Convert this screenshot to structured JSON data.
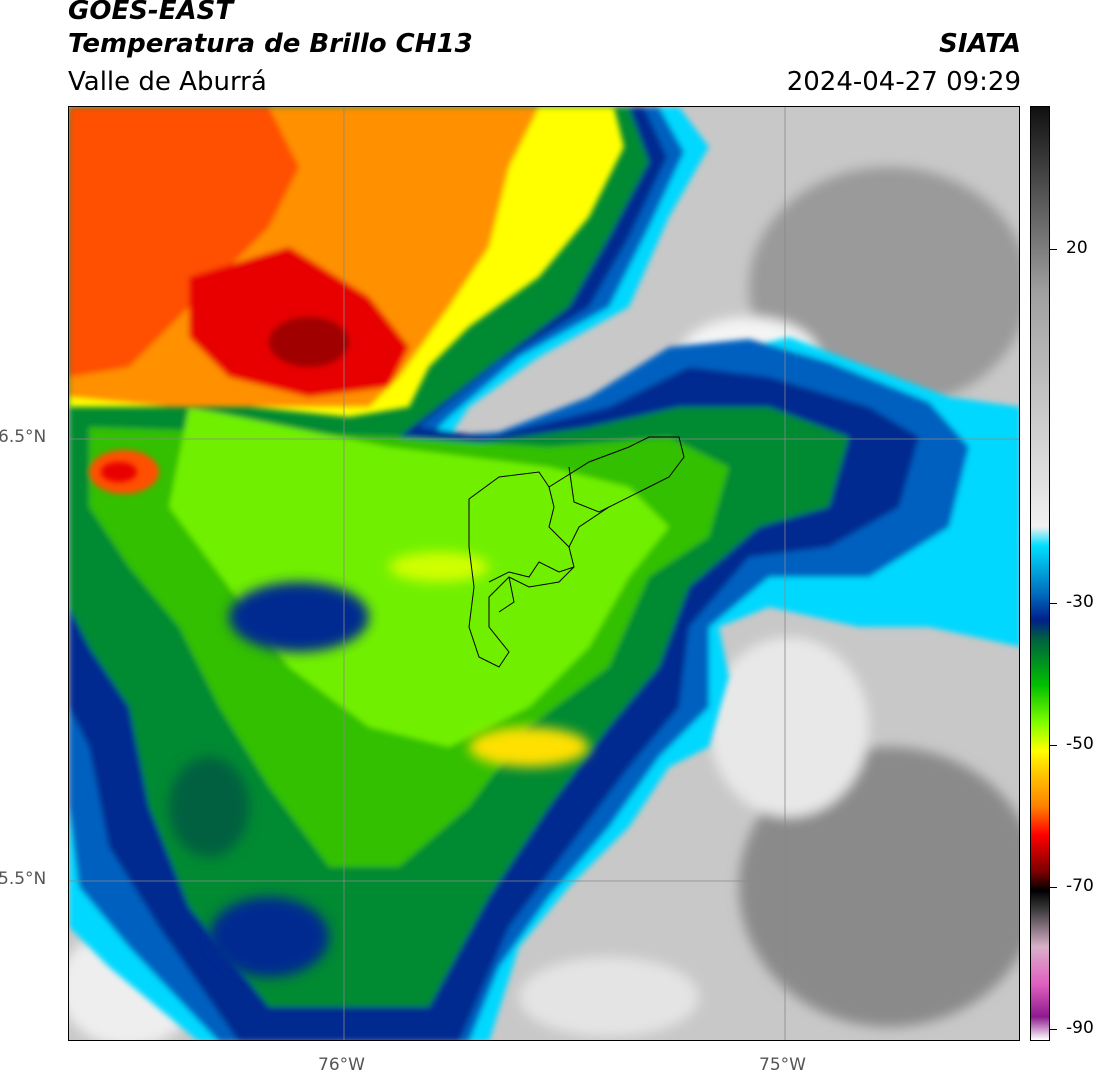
{
  "header": {
    "satellite": "GOES-EAST",
    "product": "Temperatura de Brillo CH13",
    "region": "Valle de Aburrá",
    "organization": "SIATA",
    "timestamp": "2024-04-27 09:29"
  },
  "axes": {
    "lat_labels": [
      "6.5°N",
      "5.5°N"
    ],
    "lon_labels": [
      "76°W",
      "75°W"
    ]
  },
  "colorbar": {
    "ticks": [
      "20",
      "-30",
      "-50",
      "-70",
      "-90"
    ],
    "scale_colors": [
      "#ffffff",
      "#8e1a8e",
      "#e060c0",
      "#d8b0c8",
      "#3a3a3a",
      "#000000",
      "#7a0000",
      "#ff0000",
      "#ff8000",
      "#ffd000",
      "#ffff00",
      "#80ff00",
      "#00c000",
      "#006040",
      "#00208a",
      "#0070c0",
      "#00e0ff",
      "#f0f0f0",
      "#a0a0a0",
      "#101010"
    ]
  }
}
